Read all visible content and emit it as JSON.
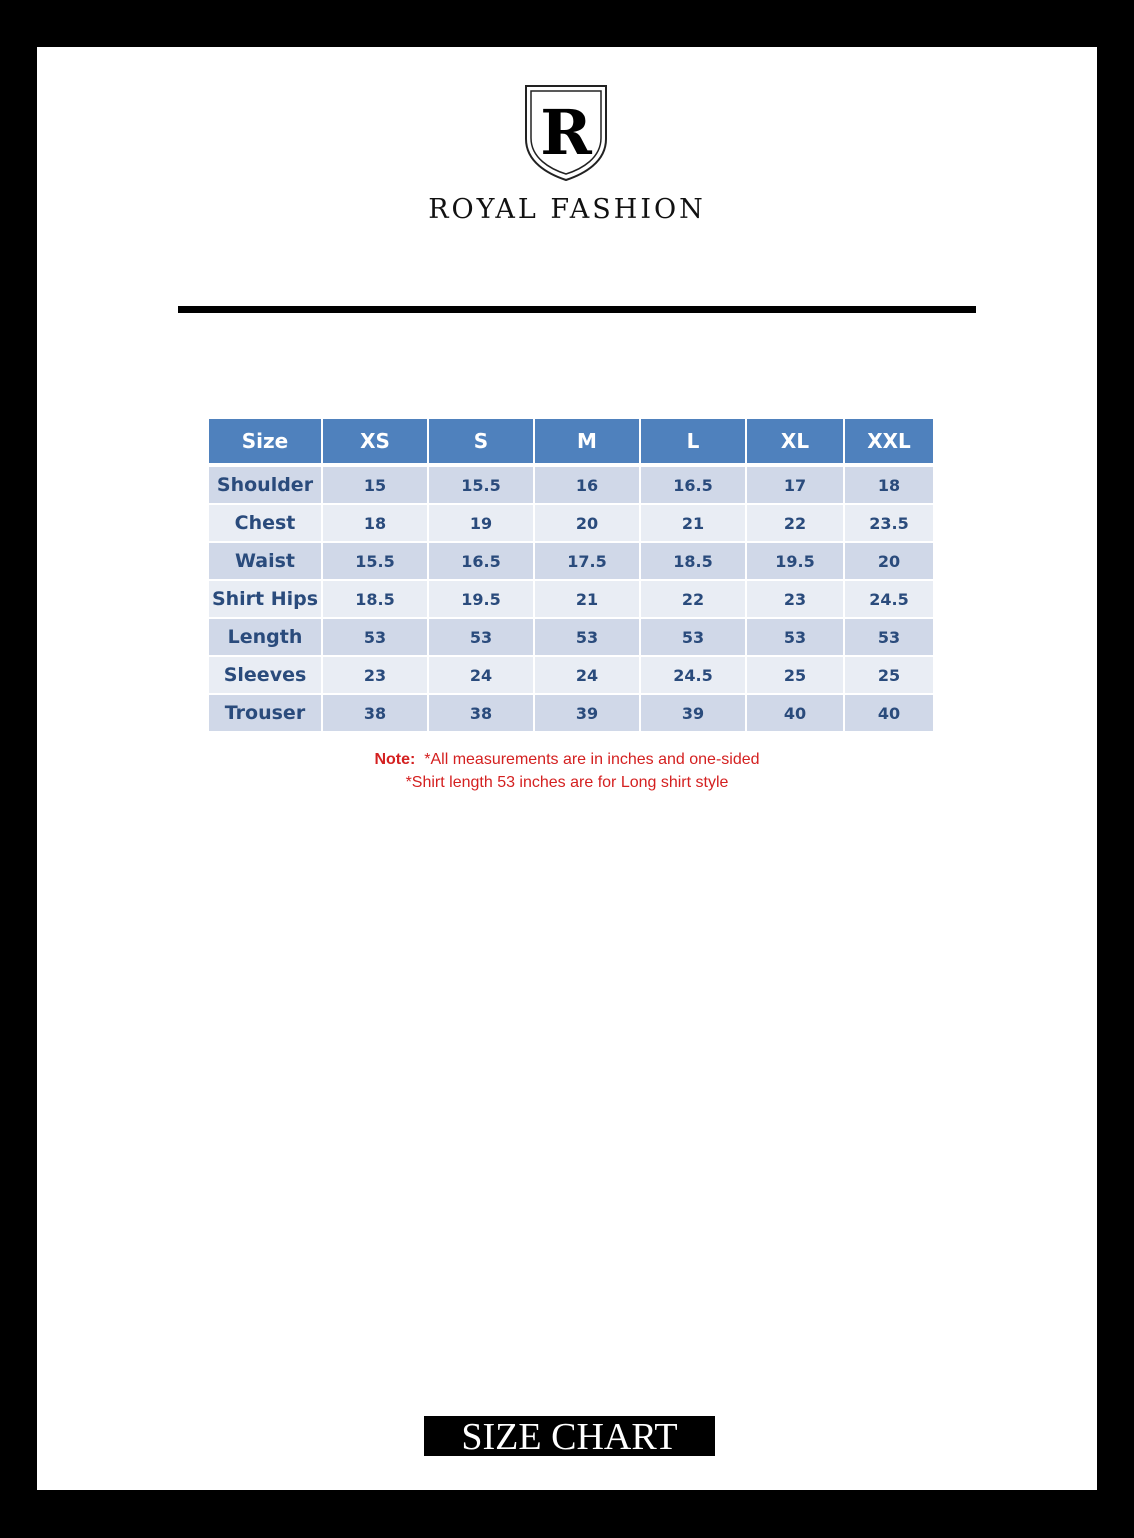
{
  "brand": {
    "name": "ROYAL FASHION",
    "logo_letter": "R"
  },
  "table": {
    "headers": [
      "Size",
      "XS",
      "S",
      "M",
      "L",
      "XL",
      "XXL"
    ],
    "rows": [
      {
        "label": "Shoulder",
        "values": [
          "15",
          "15.5",
          "16",
          "16.5",
          "17",
          "18"
        ]
      },
      {
        "label": "Chest",
        "values": [
          "18",
          "19",
          "20",
          "21",
          "22",
          "23.5"
        ]
      },
      {
        "label": "Waist",
        "values": [
          "15.5",
          "16.5",
          "17.5",
          "18.5",
          "19.5",
          "20"
        ]
      },
      {
        "label": "Shirt Hips",
        "values": [
          "18.5",
          "19.5",
          "21",
          "22",
          "23",
          "24.5"
        ]
      },
      {
        "label": "Length",
        "values": [
          "53",
          "53",
          "53",
          "53",
          "53",
          "53"
        ]
      },
      {
        "label": "Sleeves",
        "values": [
          "23",
          "24",
          "24",
          "24.5",
          "25",
          "25"
        ]
      },
      {
        "label": "Trouser",
        "values": [
          "38",
          "38",
          "39",
          "39",
          "40",
          "40"
        ]
      }
    ]
  },
  "note": {
    "prefix": "Note:",
    "line1": "*All measurements are in inches and one-sided",
    "line2": "*Shirt length 53 inches are for Long shirt style"
  },
  "footer": {
    "title": "SIZE CHART"
  },
  "colors": {
    "header": "#4f81bd",
    "row_odd": "#d0d8e8",
    "row_even": "#e9edf4",
    "text": "#2a4b7c",
    "note": "#d42020"
  }
}
